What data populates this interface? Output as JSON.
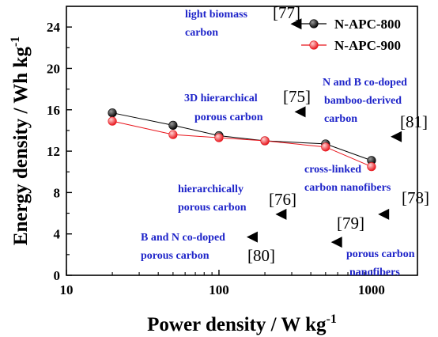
{
  "chart_data": {
    "type": "line",
    "xlabel": "Power density / W kg⁻¹",
    "ylabel": "Energy density / Wh kg⁻¹",
    "xscale": "log",
    "xlim": [
      10,
      2000
    ],
    "ylim": [
      0,
      26
    ],
    "xticks": [
      10,
      100,
      1000
    ],
    "xtick_labels": [
      "10",
      "100",
      "1000"
    ],
    "yticks": [
      0,
      4,
      8,
      12,
      16,
      20,
      24
    ],
    "ytick_labels": [
      "0",
      "4",
      "8",
      "12",
      "16",
      "20",
      "24"
    ],
    "legend_position": "top-right",
    "series": [
      {
        "name": "N-APC-800",
        "color": "#000000",
        "marker": "sphere",
        "x": [
          20,
          50,
          100,
          200,
          500,
          1000
        ],
        "y": [
          15.7,
          14.5,
          13.5,
          13.0,
          12.7,
          11.1
        ]
      },
      {
        "name": "N-APC-900",
        "color": "#e8141b",
        "marker": "sphere",
        "x": [
          20,
          50,
          100,
          200,
          500,
          1000
        ],
        "y": [
          14.9,
          13.6,
          13.3,
          13.0,
          12.4,
          10.5
        ]
      }
    ],
    "references": [
      {
        "ref": "[77]",
        "text": [
          "light biomass",
          "carbon"
        ],
        "x": 320,
        "y": 24.3
      },
      {
        "ref": "[75]",
        "text": [
          "3D hierarchical",
          "porous carbon"
        ],
        "x": 340,
        "y": 15.8
      },
      {
        "ref": "[81]",
        "text": [
          "N and B co-doped",
          "bamboo-derived",
          "carbon"
        ],
        "x": 1450,
        "y": 13.4
      },
      {
        "ref": "[78]",
        "text": [
          "cross-linked",
          "carbon nanofibers"
        ],
        "x": 1200,
        "y": 5.9
      },
      {
        "ref": "[76]",
        "text": [
          "hierarchically",
          "porous carbon"
        ],
        "x": 255,
        "y": 5.9
      },
      {
        "ref": "[79]",
        "text": [
          "porous carbon",
          "nanofibers"
        ],
        "x": 590,
        "y": 3.2
      },
      {
        "ref": "[80]",
        "text": [
          "B and N co-doped",
          "porous carbon"
        ],
        "x": 165,
        "y": 3.7
      }
    ]
  },
  "colors": {
    "annotation_text": "#1e24c9",
    "axis": "#000000",
    "series_800": "#000000",
    "series_900": "#e8141b"
  }
}
